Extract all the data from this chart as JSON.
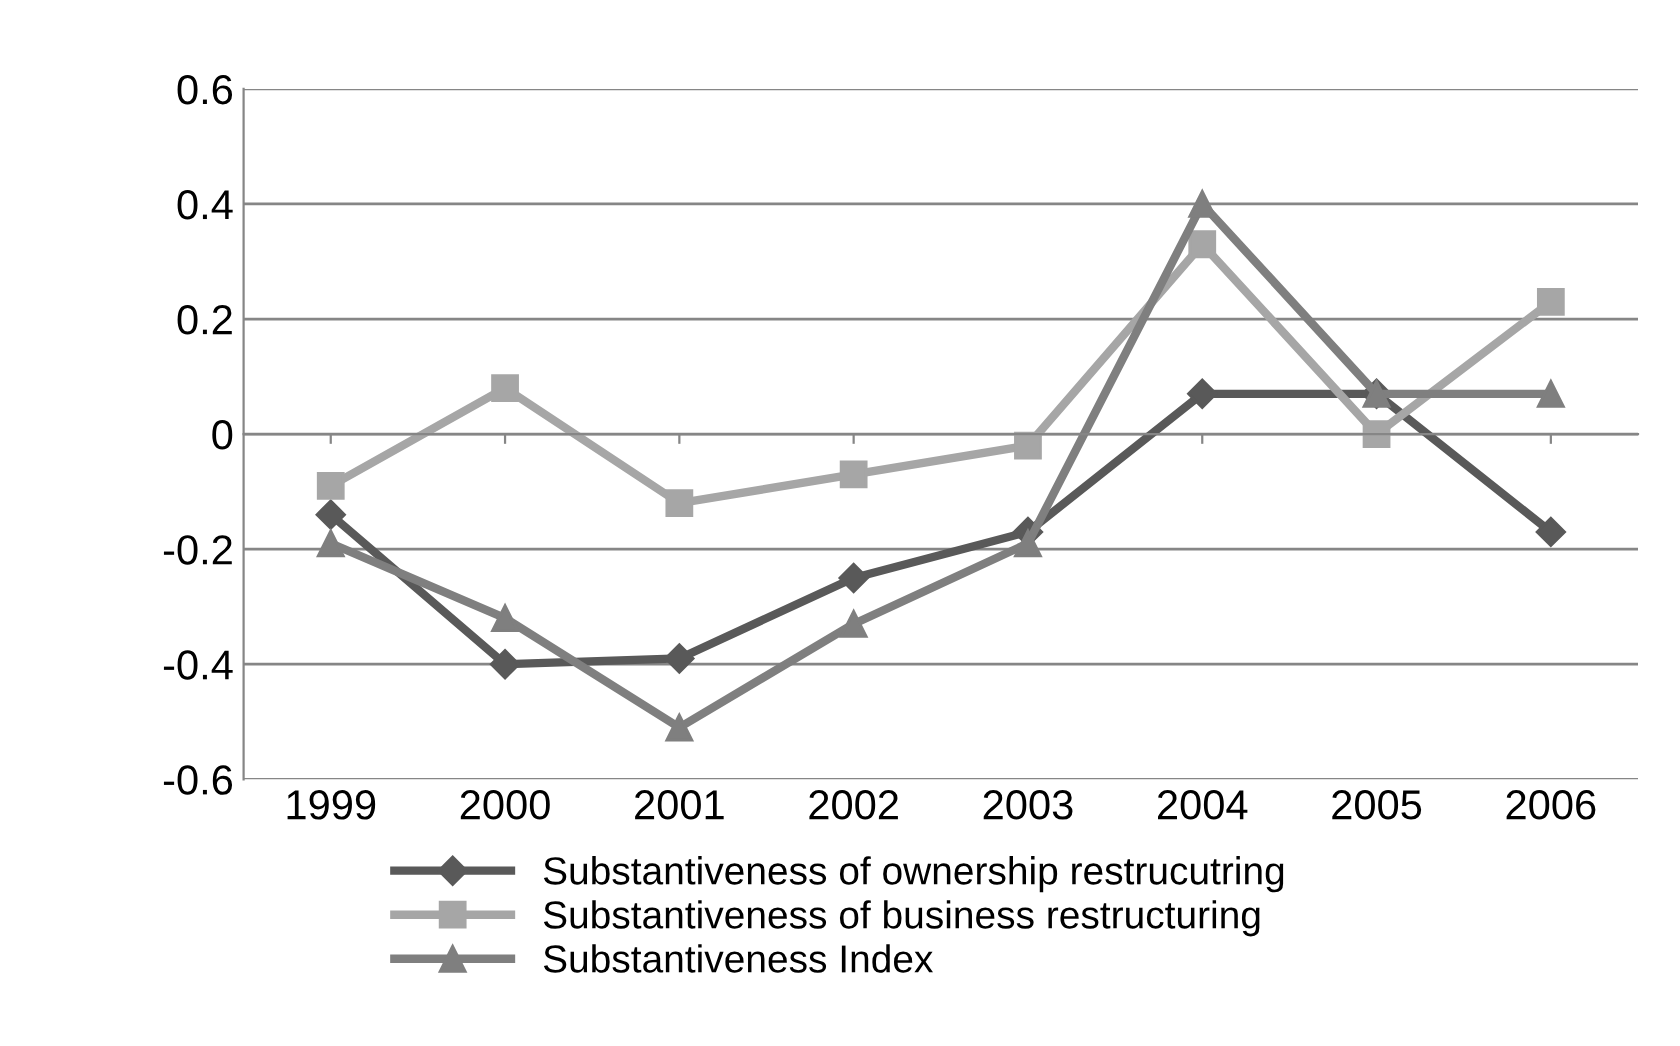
{
  "chart_data": {
    "type": "line",
    "categories": [
      "1999",
      "2000",
      "2001",
      "2002",
      "2003",
      "2004",
      "2005",
      "2006"
    ],
    "series": [
      {
        "name": "Substantiveness of ownership restrucutring",
        "color": "#595959",
        "marker": "diamond",
        "values": [
          -0.14,
          -0.4,
          -0.39,
          -0.25,
          -0.17,
          0.07,
          0.07,
          -0.17
        ]
      },
      {
        "name": "Substantiveness of business restructuring",
        "color": "#a6a6a6",
        "marker": "square",
        "values": [
          -0.09,
          0.08,
          -0.12,
          -0.07,
          -0.02,
          0.33,
          0.0,
          0.23
        ]
      },
      {
        "name": "Substantiveness Index",
        "color": "#7f7f7f",
        "marker": "triangle",
        "values": [
          -0.19,
          -0.32,
          -0.51,
          -0.33,
          -0.19,
          0.4,
          0.07,
          0.07
        ]
      }
    ],
    "ylim": [
      -0.6,
      0.6
    ],
    "yticks": [
      {
        "value": -0.6,
        "label": "-0.6"
      },
      {
        "value": -0.4,
        "label": "-0.4"
      },
      {
        "value": -0.2,
        "label": "-0.2"
      },
      0,
      0.2,
      0.4,
      0.6
    ],
    "grid": "y",
    "legend": "bottom",
    "line_style": "solid"
  }
}
